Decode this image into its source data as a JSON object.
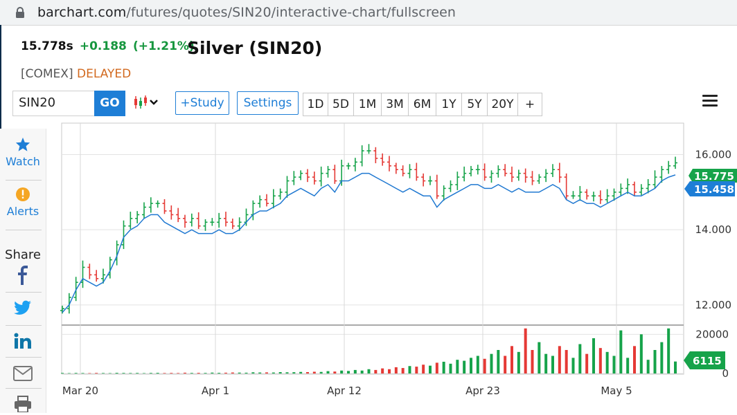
{
  "browser": {
    "url_host": "barchart.com",
    "url_path": "/futures/quotes/SIN20/interactive-chart/fullscreen"
  },
  "quote": {
    "last": "15.778s",
    "change": "+0.188",
    "change_pct": "(+1.21%)",
    "title": "Silver (SIN20)",
    "exchange": "[COMEX]",
    "status": "DELAYED",
    "positive_color": "#16963e",
    "delayed_color": "#d2691e"
  },
  "toolbar": {
    "symbol_value": "SIN20",
    "go_label": "GO",
    "study_label": "+Study",
    "settings_label": "Settings",
    "ranges": [
      "1D",
      "5D",
      "1M",
      "3M",
      "6M",
      "1Y",
      "5Y",
      "20Y",
      "+"
    ],
    "accent": "#1e7ed6"
  },
  "sidebar": {
    "watch_label": "Watch",
    "alerts_label": "Alerts",
    "share_label": "Share"
  },
  "chart_data": {
    "type": "line",
    "title": "",
    "x_ticks": [
      "Mar 20",
      "Apr 1",
      "Apr 12",
      "Apr 23",
      "May 5"
    ],
    "price_axis": {
      "ticks": [
        "16.000",
        "14.000",
        "12.000"
      ],
      "ylim": [
        11.5,
        16.8
      ]
    },
    "volume_axis": {
      "ticks": [
        "20000",
        "0"
      ],
      "ylim": [
        0,
        24000
      ]
    },
    "last_price_label": "15.775",
    "comparison_label": "15.458",
    "volume_label": "6115",
    "up_color": "#16a34a",
    "down_color": "#e53935",
    "line_color": "#1f78d1",
    "price_series": [
      11.9,
      12.2,
      12.6,
      13.0,
      12.8,
      12.7,
      12.8,
      13.2,
      13.6,
      14.1,
      14.3,
      14.4,
      14.6,
      14.7,
      14.7,
      14.5,
      14.4,
      14.3,
      14.2,
      14.3,
      14.1,
      14.2,
      14.2,
      14.3,
      14.2,
      14.1,
      14.2,
      14.4,
      14.7,
      14.8,
      14.7,
      14.9,
      15.0,
      15.3,
      15.4,
      15.5,
      15.4,
      15.3,
      15.5,
      15.6,
      15.3,
      15.7,
      15.7,
      15.8,
      16.1,
      16.1,
      15.9,
      15.8,
      15.7,
      15.6,
      15.5,
      15.6,
      15.4,
      15.3,
      15.3,
      14.9,
      15.1,
      15.2,
      15.4,
      15.5,
      15.6,
      15.6,
      15.4,
      15.5,
      15.6,
      15.5,
      15.4,
      15.5,
      15.4,
      15.3,
      15.4,
      15.5,
      15.6,
      15.4,
      14.9,
      14.9,
      15.0,
      14.9,
      14.9,
      14.8,
      14.9,
      15.0,
      15.1,
      15.2,
      15.0,
      15.1,
      15.2,
      15.4,
      15.6,
      15.7,
      15.78
    ],
    "comparison_series": [
      11.8,
      12.0,
      12.4,
      12.7,
      12.6,
      12.5,
      12.6,
      12.9,
      13.3,
      13.8,
      14.0,
      14.1,
      14.3,
      14.4,
      14.4,
      14.2,
      14.1,
      14.0,
      13.9,
      14.0,
      13.9,
      13.9,
      13.9,
      14.0,
      13.9,
      13.9,
      14.0,
      14.2,
      14.4,
      14.5,
      14.5,
      14.6,
      14.7,
      14.9,
      15.0,
      15.1,
      15.0,
      14.9,
      15.1,
      15.2,
      15.0,
      15.3,
      15.3,
      15.4,
      15.5,
      15.5,
      15.4,
      15.3,
      15.2,
      15.1,
      15.0,
      15.1,
      15.0,
      14.9,
      14.9,
      14.6,
      14.8,
      14.9,
      15.0,
      15.1,
      15.2,
      15.2,
      15.1,
      15.1,
      15.2,
      15.1,
      15.0,
      15.1,
      15.0,
      15.0,
      15.0,
      15.1,
      15.2,
      15.1,
      14.8,
      14.7,
      14.8,
      14.7,
      14.7,
      14.6,
      14.7,
      14.8,
      14.9,
      15.0,
      14.9,
      14.9,
      15.0,
      15.1,
      15.3,
      15.4,
      15.458
    ],
    "volume_series": [
      300,
      200,
      300,
      250,
      200,
      300,
      250,
      200,
      350,
      300,
      250,
      300,
      200,
      300,
      350,
      250,
      300,
      250,
      400,
      300,
      350,
      300,
      450,
      350,
      400,
      500,
      450,
      400,
      600,
      500,
      550,
      500,
      700,
      600,
      650,
      800,
      700,
      900,
      800,
      1200,
      1000,
      1500,
      1300,
      1800,
      1500,
      2200,
      1800,
      2600,
      2200,
      3200,
      2800,
      3800,
      3500,
      4500,
      4000,
      5500,
      6000,
      5000,
      7000,
      6500,
      8000,
      9000,
      7500,
      10000,
      12000,
      9000,
      14000,
      11000,
      23000,
      12000,
      16000,
      10000,
      9000,
      14000,
      12000,
      8000,
      15000,
      10000,
      18000,
      13000,
      11000,
      9000,
      22000,
      8000,
      14000,
      20000,
      7000,
      12000,
      16000,
      23000,
      6115
    ]
  }
}
